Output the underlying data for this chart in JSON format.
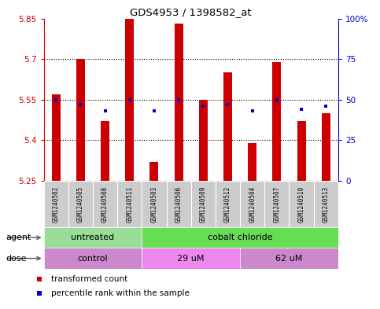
{
  "title": "GDS4953 / 1398582_at",
  "samples": [
    "GSM1240502",
    "GSM1240505",
    "GSM1240508",
    "GSM1240511",
    "GSM1240503",
    "GSM1240506",
    "GSM1240509",
    "GSM1240512",
    "GSM1240504",
    "GSM1240507",
    "GSM1240510",
    "GSM1240513"
  ],
  "red_values": [
    5.57,
    5.7,
    5.47,
    5.85,
    5.32,
    5.83,
    5.55,
    5.65,
    5.39,
    5.69,
    5.47,
    5.5
  ],
  "blue_values_pct": [
    50,
    47,
    43,
    50,
    43,
    50,
    46,
    47,
    43,
    50,
    44,
    46
  ],
  "ylim_left": [
    5.25,
    5.85
  ],
  "ylim_right": [
    0,
    100
  ],
  "yticks_left": [
    5.25,
    5.4,
    5.55,
    5.7,
    5.85
  ],
  "yticks_right": [
    0,
    25,
    50,
    75,
    100
  ],
  "ytick_labels_left": [
    "5.25",
    "5.4",
    "5.55",
    "5.7",
    "5.85"
  ],
  "ytick_labels_right": [
    "0",
    "25",
    "50",
    "75",
    "100%"
  ],
  "hlines": [
    5.4,
    5.55,
    5.7
  ],
  "bar_color": "#cc0000",
  "dot_color": "#0000cc",
  "bar_bottom": 5.25,
  "agent_groups": [
    {
      "label": "untreated",
      "start": 0,
      "end": 4,
      "color": "#99dd99"
    },
    {
      "label": "cobalt chloride",
      "start": 4,
      "end": 12,
      "color": "#66dd55"
    }
  ],
  "dose_groups": [
    {
      "label": "control",
      "start": 0,
      "end": 4,
      "color": "#cc88cc"
    },
    {
      "label": "29 uM",
      "start": 4,
      "end": 8,
      "color": "#ee88ee"
    },
    {
      "label": "62 uM",
      "start": 8,
      "end": 12,
      "color": "#cc88cc"
    }
  ],
  "agent_label": "agent",
  "dose_label": "dose",
  "legend_red": "transformed count",
  "legend_blue": "percentile rank within the sample",
  "bg_color": "#ffffff",
  "sample_bg": "#cccccc",
  "bar_width": 0.35
}
